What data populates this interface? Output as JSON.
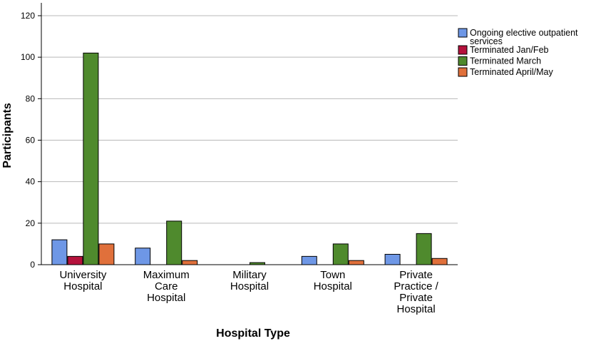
{
  "chart_data": {
    "type": "bar",
    "title": "",
    "xlabel": "Hospital Type",
    "ylabel": "Participants",
    "ylim": [
      0,
      120
    ],
    "yticks": [
      0,
      20,
      40,
      60,
      80,
      100,
      120
    ],
    "grid": true,
    "legend_position": "top-right",
    "categories": [
      [
        "University",
        "Hospital"
      ],
      [
        "Maximum",
        "Care",
        "Hospital"
      ],
      [
        "Military",
        "Hospital"
      ],
      [
        "Town",
        "Hospital"
      ],
      [
        "Private",
        "Practice /",
        "Private",
        "Hospital"
      ]
    ],
    "series": [
      {
        "name": "Ongoing elective outpatient services",
        "legend_lines": [
          "Ongoing elective outpatient",
          "services"
        ],
        "color": "#6e97e6",
        "values": [
          12,
          8,
          0,
          4,
          5
        ]
      },
      {
        "name": "Terminated Jan/Feb",
        "legend_lines": [
          "Terminated Jan/Feb"
        ],
        "color": "#b5123c",
        "values": [
          4,
          0,
          0,
          0,
          0
        ]
      },
      {
        "name": "Terminated March",
        "legend_lines": [
          "Terminated March"
        ],
        "color": "#4f8a2d",
        "values": [
          102,
          21,
          1,
          10,
          15
        ]
      },
      {
        "name": "Terminated April/May",
        "legend_lines": [
          "Terminated April/May"
        ],
        "color": "#e0703b",
        "values": [
          10,
          2,
          0,
          2,
          3
        ]
      }
    ]
  }
}
